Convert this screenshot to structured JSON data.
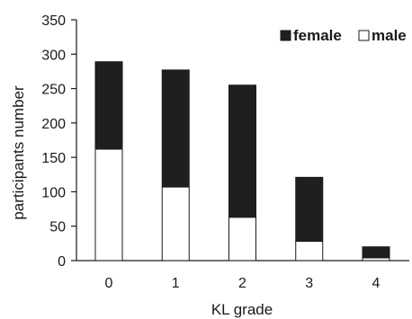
{
  "chart_data": {
    "type": "bar",
    "stacked": true,
    "categories": [
      "0",
      "1",
      "2",
      "3",
      "4"
    ],
    "series": [
      {
        "name": "male",
        "values": [
          162,
          107,
          63,
          28,
          4
        ],
        "color": "#ffffff"
      },
      {
        "name": "female",
        "values": [
          127,
          170,
          192,
          93,
          16
        ],
        "color": "#1f1f1f"
      }
    ],
    "title": "",
    "xlabel": "KL grade",
    "ylabel": "participants number",
    "ylim": [
      0,
      350
    ],
    "yticks": [
      0,
      50,
      100,
      150,
      200,
      250,
      300,
      350
    ],
    "grid": false,
    "legend": {
      "position": "top-right",
      "order": [
        "female",
        "male"
      ]
    }
  }
}
